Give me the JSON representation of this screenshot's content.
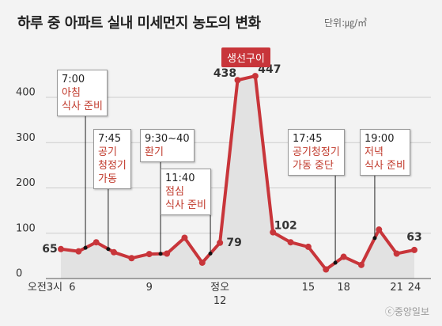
{
  "chart_data": {
    "type": "line",
    "title": "하루 중 아파트 실내 미세먼지 농도의 변화",
    "unit": "단위:㎍/㎥",
    "categories": [
      "오전3시",
      "6",
      null,
      null,
      null,
      "9",
      null,
      null,
      null,
      "정오\n12",
      null,
      null,
      null,
      null,
      "15",
      null,
      "18",
      null,
      null,
      "21",
      "24"
    ],
    "values": [
      65,
      60,
      80,
      58,
      45,
      54,
      55,
      90,
      35,
      79,
      438,
      447,
      102,
      80,
      70,
      20,
      48,
      30,
      108,
      55,
      63
    ],
    "color": "#c8353a",
    "ylim": [
      0,
      420
    ],
    "yticks": [
      0,
      100,
      200,
      300,
      400
    ],
    "grid": true,
    "annotations": [
      {
        "time": "7:00",
        "text": "아침\n식사 준비"
      },
      {
        "time": "7:45",
        "text": "공기\n청정기\n가동"
      },
      {
        "time": "9:30~40",
        "text": "환기"
      },
      {
        "time": "11:40",
        "text": "점심\n식사 준비"
      },
      {
        "time": "17:45",
        "text": "공기청정기\n가동 중단"
      },
      {
        "time": "19:00",
        "text": "저녁\n식사 준비"
      }
    ],
    "highlight": "생선구이",
    "credit": "ⓒ중앙일보"
  }
}
